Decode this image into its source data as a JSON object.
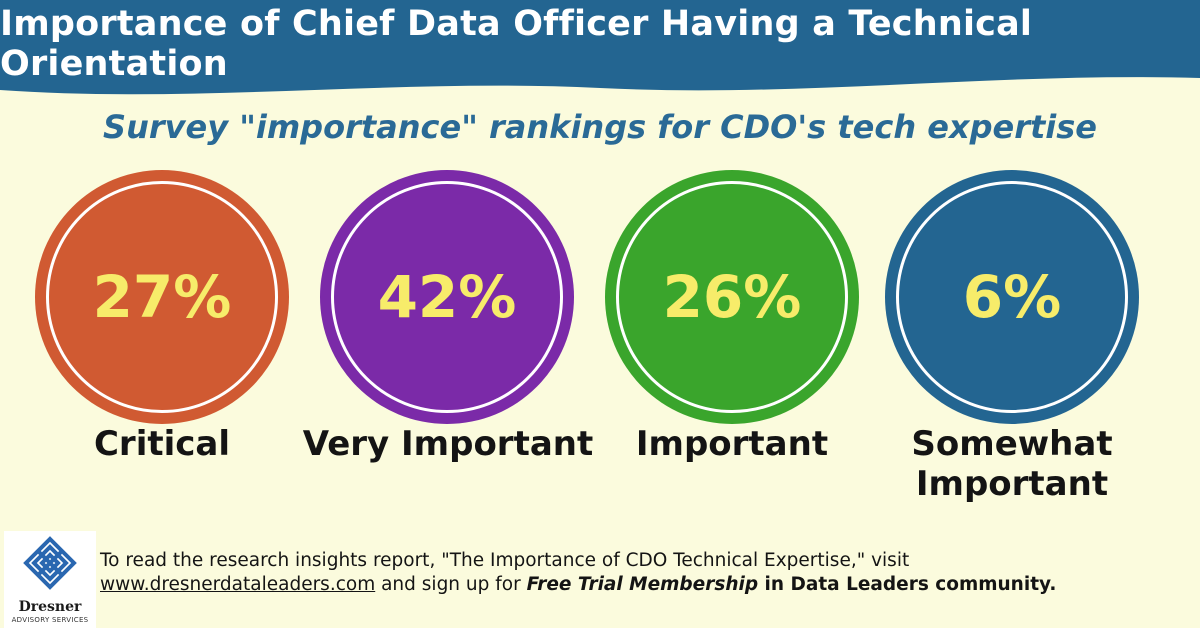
{
  "header": {
    "title": "Importance of Chief Data Officer Having a Technical Orientation",
    "subtitle": "Survey \"importance\" rankings for CDO's tech expertise"
  },
  "colors": {
    "banner": "#236591",
    "background": "#fbfbdd",
    "value_text": "#f7ec6a",
    "subtitle": "#2a6a96"
  },
  "chart_data": {
    "type": "table",
    "title": "Importance of Chief Data Officer Having a Technical Orientation",
    "subtitle": "Survey \"importance\" rankings for CDO's tech expertise",
    "categories": [
      "Critical",
      "Very Important",
      "Important",
      "Somewhat Important"
    ],
    "values": [
      27,
      42,
      26,
      6
    ],
    "value_labels": [
      "27%",
      "42%",
      "26%",
      "6%"
    ],
    "label_lines": [
      [
        "Critical"
      ],
      [
        "Very Important"
      ],
      [
        "Important"
      ],
      [
        "Somewhat",
        "Important"
      ]
    ],
    "colors": [
      "#d05a32",
      "#7b2aa8",
      "#3aa52c",
      "#236591"
    ]
  },
  "logo": {
    "icon": "knot-icon",
    "name": "Dresner",
    "tagline": "ADVISORY SERVICES"
  },
  "footer": {
    "text_1": "To read the research insights report, \"The Importance of CDO Technical Expertise,\" visit",
    "link": "www.dresnerdataleaders.com",
    "text_2": " and sign up for ",
    "emphasis": "Free Trial Membership",
    "text_3": " in Data Leaders community."
  }
}
